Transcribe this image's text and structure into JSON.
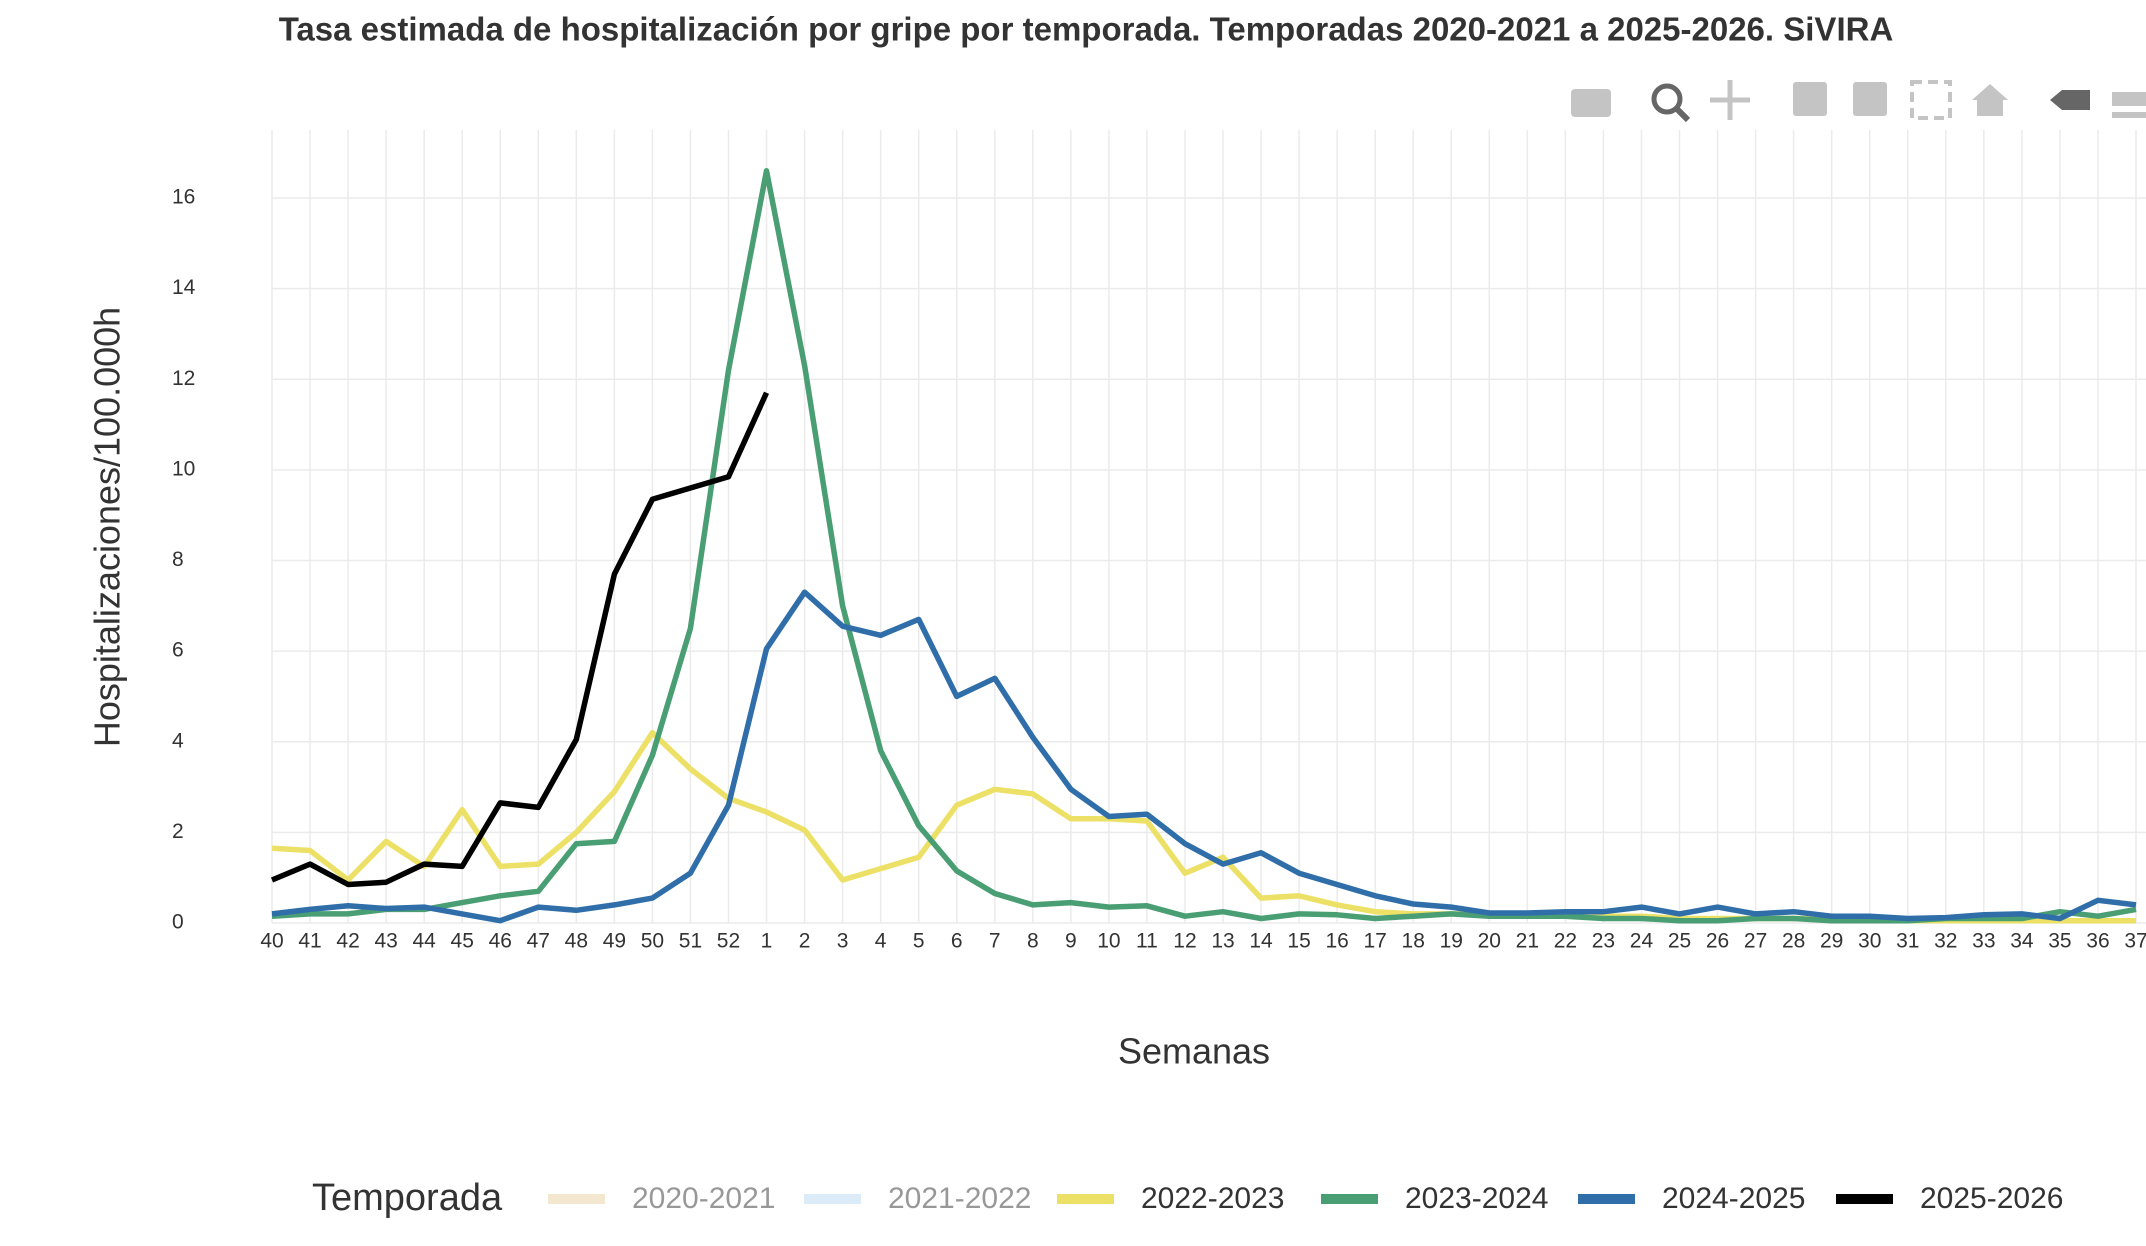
{
  "chart_data": {
    "type": "line",
    "title": "Tasa estimada de hospitalización por gripe por temporada. Temporadas 2020-2021 a 2025-2026. SiVIRA",
    "x_label": "Semanas",
    "y_label": "Hospitalizaciones/100.000h",
    "legend_title": "Temporada",
    "categories": [
      "40",
      "41",
      "42",
      "43",
      "44",
      "45",
      "46",
      "47",
      "48",
      "49",
      "50",
      "51",
      "52",
      "1",
      "2",
      "3",
      "4",
      "5",
      "6",
      "7",
      "8",
      "9",
      "10",
      "11",
      "12",
      "13",
      "14",
      "15",
      "16",
      "17",
      "18",
      "19",
      "20",
      "21",
      "22",
      "23",
      "24",
      "25",
      "26",
      "27",
      "28",
      "29",
      "30",
      "31",
      "32",
      "33",
      "34",
      "35",
      "36",
      "37"
    ],
    "ylim": [
      0,
      17.5
    ],
    "yticks": [
      0,
      2,
      4,
      6,
      8,
      10,
      12,
      14,
      16
    ],
    "grid": true,
    "series": [
      {
        "name": "2020-2021",
        "color": "#e8d3a0",
        "visible": false,
        "values": [
          null,
          null,
          null,
          null,
          null,
          null,
          null,
          null,
          null,
          null,
          null,
          null,
          null,
          null,
          null,
          null,
          null,
          null,
          null,
          null,
          null,
          null,
          null,
          null,
          null,
          null,
          null,
          null,
          null,
          null,
          null,
          null,
          null,
          null,
          null,
          null,
          null,
          null,
          null,
          null,
          null,
          null,
          null,
          null,
          null,
          null,
          null,
          null,
          null,
          null
        ]
      },
      {
        "name": "2021-2022",
        "color": "#b9d9f0",
        "visible": false,
        "values": [
          null,
          null,
          null,
          null,
          null,
          null,
          null,
          null,
          null,
          null,
          null,
          null,
          null,
          null,
          null,
          null,
          null,
          null,
          null,
          null,
          null,
          null,
          null,
          null,
          null,
          null,
          null,
          null,
          null,
          null,
          null,
          null,
          null,
          null,
          null,
          null,
          null,
          null,
          null,
          null,
          null,
          null,
          null,
          null,
          null,
          null,
          null,
          null,
          null,
          null
        ]
      },
      {
        "name": "2022-2023",
        "color": "#ece166",
        "visible": true,
        "values": [
          1.65,
          1.6,
          0.95,
          1.8,
          1.25,
          2.5,
          1.25,
          1.3,
          2.0,
          2.9,
          4.2,
          3.4,
          2.75,
          2.45,
          2.05,
          0.95,
          1.2,
          1.45,
          2.6,
          2.95,
          2.85,
          2.3,
          2.3,
          2.25,
          1.1,
          1.45,
          0.55,
          0.6,
          0.4,
          0.25,
          0.2,
          0.2,
          0.2,
          0.2,
          0.15,
          0.15,
          0.15,
          0.1,
          0.1,
          0.1,
          0.1,
          0.1,
          0.1,
          0.05,
          0.05,
          0.05,
          0.05,
          0.05,
          0.05,
          0.05
        ]
      },
      {
        "name": "2023-2024",
        "color": "#4a9e74",
        "visible": true,
        "values": [
          0.15,
          0.2,
          0.2,
          0.3,
          0.3,
          0.45,
          0.6,
          0.7,
          1.75,
          1.8,
          3.7,
          6.5,
          12.2,
          16.6,
          12.3,
          7.0,
          3.8,
          2.15,
          1.15,
          0.65,
          0.4,
          0.45,
          0.35,
          0.38,
          0.15,
          0.25,
          0.1,
          0.2,
          0.18,
          0.1,
          0.15,
          0.2,
          0.15,
          0.15,
          0.15,
          0.1,
          0.1,
          0.05,
          0.05,
          0.1,
          0.1,
          0.05,
          0.05,
          0.05,
          0.1,
          0.1,
          0.1,
          0.25,
          0.15,
          0.3
        ]
      },
      {
        "name": "2024-2025",
        "color": "#2f6ea9",
        "visible": true,
        "values": [
          0.2,
          0.3,
          0.38,
          0.32,
          0.35,
          0.2,
          0.05,
          0.35,
          0.28,
          0.4,
          0.55,
          1.1,
          2.6,
          6.05,
          7.3,
          6.55,
          6.35,
          6.7,
          5.0,
          5.4,
          4.1,
          2.95,
          2.35,
          2.4,
          1.75,
          1.3,
          1.55,
          1.1,
          0.85,
          0.6,
          0.42,
          0.35,
          0.22,
          0.22,
          0.25,
          0.25,
          0.35,
          0.2,
          0.35,
          0.2,
          0.25,
          0.15,
          0.15,
          0.1,
          0.12,
          0.18,
          0.2,
          0.1,
          0.5,
          0.4
        ]
      },
      {
        "name": "2025-2026",
        "color": "#000000",
        "visible": true,
        "values": [
          0.95,
          1.3,
          0.85,
          0.9,
          1.3,
          1.25,
          2.65,
          2.55,
          4.05,
          7.7,
          9.35,
          9.6,
          9.85,
          11.7,
          null,
          null,
          null,
          null,
          null,
          null,
          null,
          null,
          null,
          null,
          null,
          null,
          null,
          null,
          null,
          null,
          null,
          null,
          null,
          null,
          null,
          null,
          null,
          null,
          null,
          null,
          null,
          null,
          null,
          null,
          null,
          null,
          null,
          null,
          null,
          null
        ]
      }
    ]
  }
}
